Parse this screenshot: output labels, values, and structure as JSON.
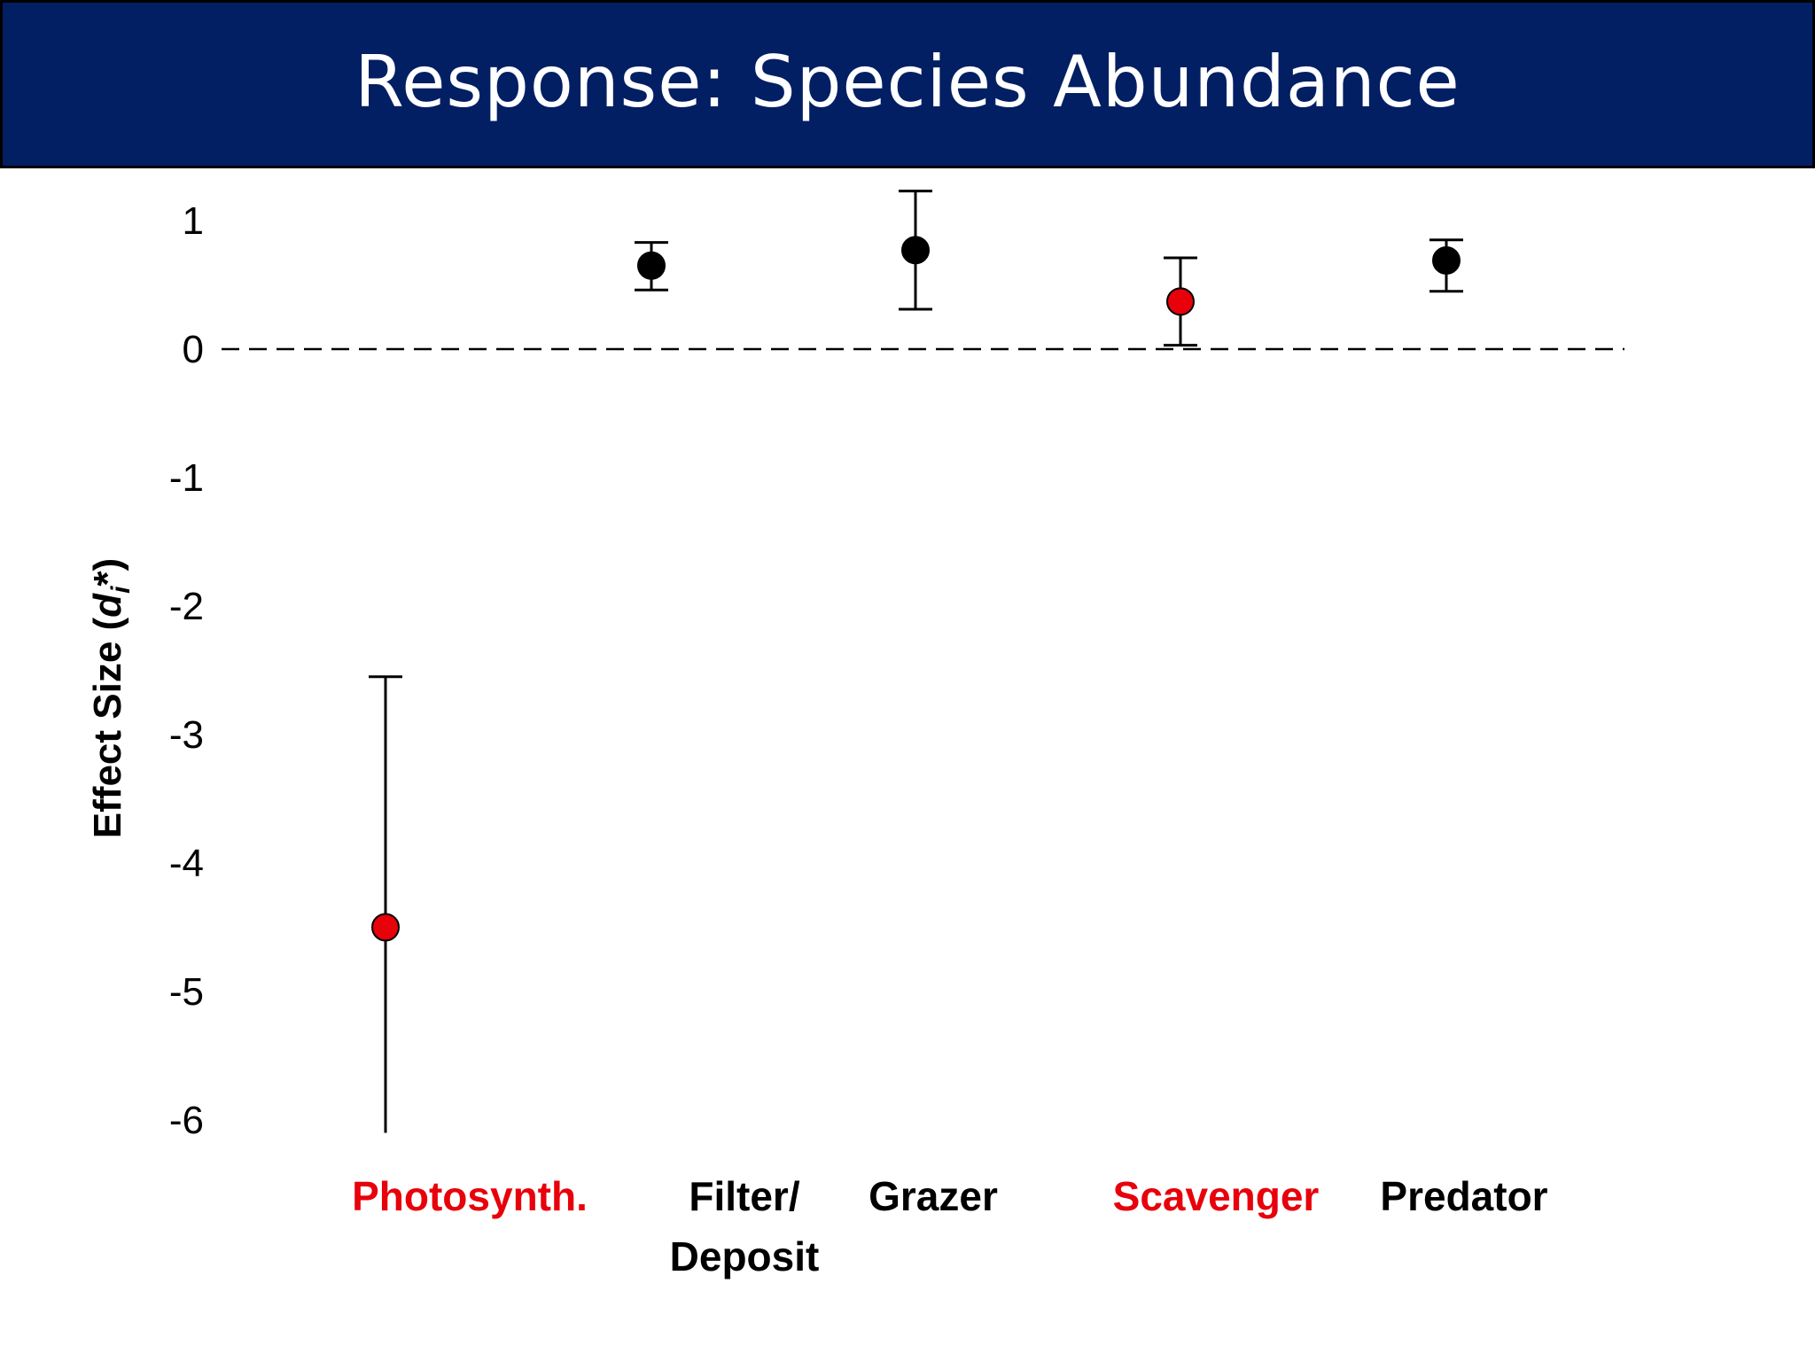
{
  "header": {
    "title": "Response: Species Abundance"
  },
  "chart_data": {
    "type": "scatter",
    "title": "Response: Species Abundance",
    "ylabel_main": "Effect Size",
    "ylabel_symbol": "d",
    "ylabel_subscript": "i",
    "ylabel_suffix": "*",
    "xlabel": "",
    "ylim": [
      -6,
      1.3
    ],
    "yticks": [
      "1",
      "0",
      "-1",
      "-2",
      "-3",
      "-4",
      "-5",
      "-6"
    ],
    "ytick_values": [
      1,
      0,
      -1,
      -2,
      -3,
      -4,
      -5,
      -6
    ],
    "reference_line": {
      "y": 0,
      "style": "dashed"
    },
    "grid": false,
    "categories": [
      {
        "label_lines": [
          "Photosynth."
        ],
        "color": "#e8000b"
      },
      {
        "label_lines": [
          "Filter/",
          "Deposit"
        ],
        "color": "#000000"
      },
      {
        "label_lines": [
          "Grazer"
        ],
        "color": "#000000"
      },
      {
        "label_lines": [
          "Scavenger"
        ],
        "color": "#e8000b"
      },
      {
        "label_lines": [
          "Predator"
        ],
        "color": "#000000"
      }
    ],
    "points": [
      {
        "y": -4.5,
        "lower": -6.1,
        "upper": -2.55,
        "color": "#e8000b"
      },
      {
        "y": 0.65,
        "lower": 0.46,
        "upper": 0.83,
        "color": "#000000"
      },
      {
        "y": 0.77,
        "lower": 0.31,
        "upper": 1.23,
        "color": "#000000"
      },
      {
        "y": 0.37,
        "lower": 0.03,
        "upper": 0.71,
        "color": "#e8000b"
      },
      {
        "y": 0.69,
        "lower": 0.45,
        "upper": 0.85,
        "color": "#000000"
      }
    ]
  },
  "colors": {
    "header_bg": "#031f63",
    "header_text": "#ffffff",
    "highlight": "#e8000b",
    "marker_default": "#000000"
  }
}
